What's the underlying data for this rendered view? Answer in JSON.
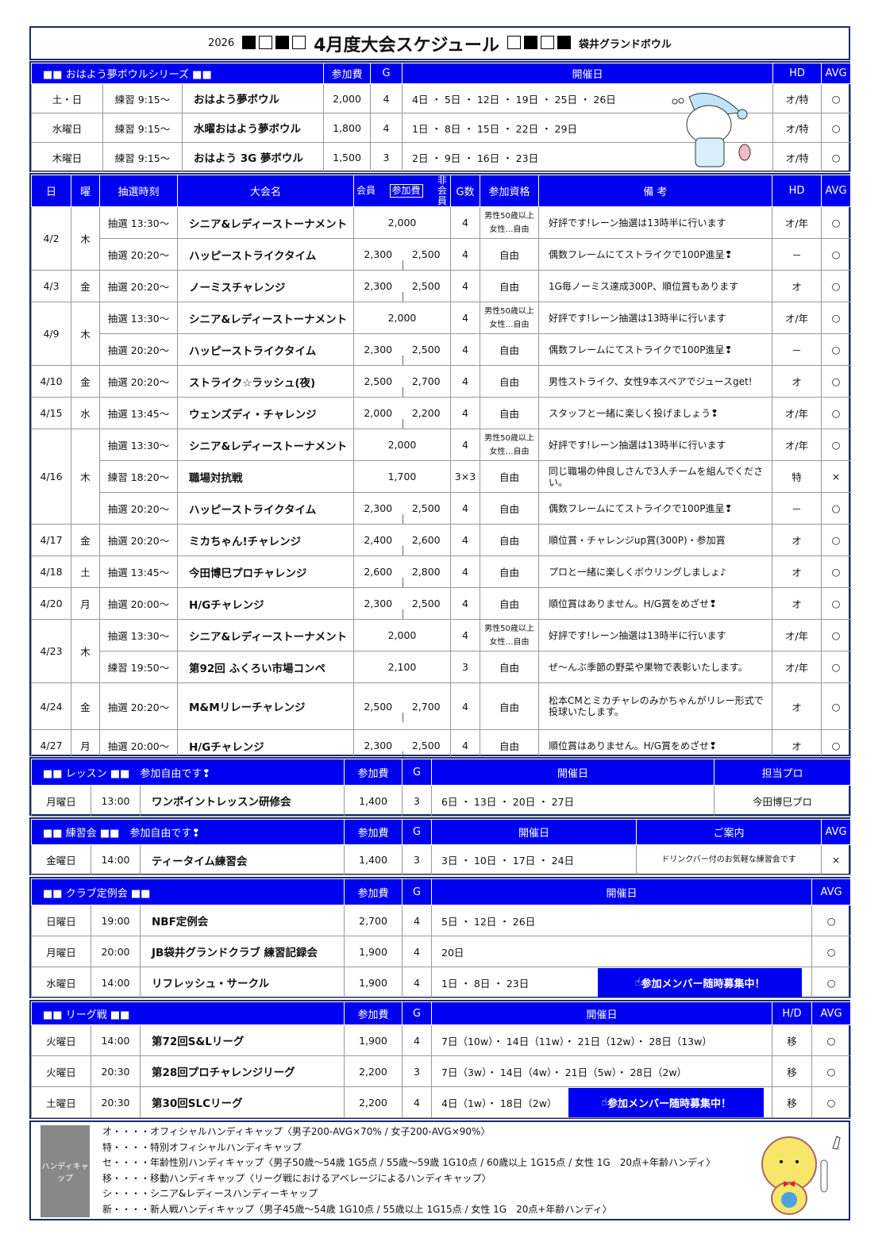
{
  "title": {
    "year": "2026",
    "main": "4月度大会スケジュール",
    "venue": "袋井グランドボウル"
  },
  "morning": {
    "headers": [
      "■■ おはよう夢ボウルシリーズ ■■",
      "参加費",
      "G",
      "開催日",
      "HD",
      "AVG"
    ],
    "rows": [
      [
        "土・日",
        "練習 9:15～",
        "おはよう夢ボウル",
        "2,000",
        "4",
        "4日 ・ 5日 ・ 12日 ・ 19日 ・ 25日 ・ 26日",
        "オ/特",
        "○"
      ],
      [
        "水曜日",
        "練習 9:15～",
        "水曜おはよう夢ボウル",
        "1,800",
        "4",
        "1日 ・ 8日 ・ 15日 ・ 22日 ・ 29日",
        "オ/特",
        "○"
      ],
      [
        "木曜日",
        "練習 9:15～",
        "おはよう 3G 夢ボウル",
        "1,500",
        "3",
        "2日 ・ 9日 ・ 16日 ・ 23日",
        "オ/特",
        "○"
      ]
    ]
  },
  "main": {
    "headers": {
      "day": "日",
      "dow": "曜",
      "time": "抽選時刻",
      "name": "大会名",
      "member": "会員",
      "fee": "参加費",
      "nonmember": "非会員",
      "games": "G数",
      "elig": "参加資格",
      "note": "備 考",
      "hd": "HD",
      "avg": "AVG"
    },
    "days": [
      {
        "date": "4/2",
        "dow": "木",
        "events": [
          {
            "time": "抽選 13:30～",
            "name": "シニア&レディーストーナメント",
            "fee": "2,000",
            "g": "4",
            "elig": "男性50歳以上 女性…自由",
            "note": "好評です!レーン抽選は13時半に行います",
            "hd": "オ/年",
            "avg": "○"
          },
          {
            "time": "抽選 20:20～",
            "name": "ハッピーストライクタイム",
            "member": "2,300",
            "non": "2,500",
            "g": "4",
            "elig": "自由",
            "note": "偶数フレームにてストライクで100P進呈❢",
            "hd": "－",
            "avg": "○"
          }
        ]
      },
      {
        "date": "4/3",
        "dow": "金",
        "events": [
          {
            "time": "抽選 20:20～",
            "name": "ノーミスチャレンジ",
            "member": "2,300",
            "non": "2,500",
            "g": "4",
            "elig": "自由",
            "note": "1G毎ノーミス達成300P、順位賞もあります",
            "hd": "オ",
            "avg": "○"
          }
        ]
      },
      {
        "date": "4/9",
        "dow": "木",
        "events": [
          {
            "time": "抽選 13:30～",
            "name": "シニア&レディーストーナメント",
            "fee": "2,000",
            "g": "4",
            "elig": "男性50歳以上 女性…自由",
            "note": "好評です!レーン抽選は13時半に行います",
            "hd": "オ/年",
            "avg": "○"
          },
          {
            "time": "抽選 20:20～",
            "name": "ハッピーストライクタイム",
            "member": "2,300",
            "non": "2,500",
            "g": "4",
            "elig": "自由",
            "note": "偶数フレームにてストライクで100P進呈❢",
            "hd": "－",
            "avg": "○"
          }
        ]
      },
      {
        "date": "4/10",
        "dow": "金",
        "events": [
          {
            "time": "抽選 20:20～",
            "name": "ストライク☆ラッシュ(夜)",
            "member": "2,500",
            "non": "2,700",
            "g": "4",
            "elig": "自由",
            "note": "男性ストライク、女性9本スペアでジュースget!",
            "hd": "オ",
            "avg": "○"
          }
        ]
      },
      {
        "date": "4/15",
        "dow": "水",
        "events": [
          {
            "time": "抽選 13:45～",
            "name": "ウェンズディ・チャレンジ",
            "member": "2,000",
            "non": "2,200",
            "g": "4",
            "elig": "自由",
            "note": "スタッフと一緒に楽しく投げましょう❢",
            "hd": "オ/年",
            "avg": "○"
          }
        ]
      },
      {
        "date": "4/16",
        "dow": "木",
        "events": [
          {
            "time": "抽選 13:30～",
            "name": "シニア&レディーストーナメント",
            "fee": "2,000",
            "g": "4",
            "elig": "男性50歳以上 女性…自由",
            "note": "好評です!レーン抽選は13時半に行います",
            "hd": "オ/年",
            "avg": "○"
          },
          {
            "time": "練習 18:20～",
            "name": "職場対抗戦",
            "fee": "1,700",
            "g": "3×3",
            "elig": "自由",
            "note": "同じ職場の仲良しさんで3人チームを組んでください。",
            "hd": "特",
            "avg": "×"
          },
          {
            "time": "抽選 20:20～",
            "name": "ハッピーストライクタイム",
            "member": "2,300",
            "non": "2,500",
            "g": "4",
            "elig": "自由",
            "note": "偶数フレームにてストライクで100P進呈❢",
            "hd": "－",
            "avg": "○"
          }
        ]
      },
      {
        "date": "4/17",
        "dow": "金",
        "events": [
          {
            "time": "抽選 20:20～",
            "name": "ミカちゃん!チャレンジ",
            "member": "2,400",
            "non": "2,600",
            "g": "4",
            "elig": "自由",
            "note": "順位賞・チャレンジup賞(300P)・参加賞",
            "hd": "オ",
            "avg": "○"
          }
        ]
      },
      {
        "date": "4/18",
        "dow": "土",
        "events": [
          {
            "time": "抽選 13:45～",
            "name": "今田博巳プロチャレンジ",
            "member": "2,600",
            "non": "2,800",
            "g": "4",
            "elig": "自由",
            "note": "プロと一緒に楽しくボウリングしましょ♪",
            "hd": "オ",
            "avg": "○"
          }
        ]
      },
      {
        "date": "4/20",
        "dow": "月",
        "events": [
          {
            "time": "抽選 20:00～",
            "name": "H/Gチャレンジ",
            "member": "2,300",
            "non": "2,500",
            "g": "4",
            "elig": "自由",
            "note": "順位賞はありません。H/G賞をめざせ❢",
            "hd": "オ",
            "avg": "○"
          }
        ]
      },
      {
        "date": "4/23",
        "dow": "木",
        "events": [
          {
            "time": "抽選 13:30～",
            "name": "シニア&レディーストーナメント",
            "fee": "2,000",
            "g": "4",
            "elig": "男性50歳以上 女性…自由",
            "note": "好評です!レーン抽選は13時半に行います",
            "hd": "オ/年",
            "avg": "○"
          },
          {
            "time": "練習 19:50～",
            "name": "第92回 ふくろい市場コンペ",
            "fee": "2,100",
            "g": "3",
            "elig": "自由",
            "note": "ぜ～んぶ季節の野菜や果物で表彰いたします。",
            "hd": "オ/年",
            "avg": "○"
          }
        ]
      },
      {
        "date": "4/24",
        "dow": "金",
        "tall": true,
        "events": [
          {
            "time": "抽選 20:20～",
            "name": "M&Mリレーチャレンジ",
            "member": "2,500",
            "non": "2,700",
            "g": "4",
            "elig": "自由",
            "note": "松本CMとミカチャレのみかちゃんがリレー形式で投球いたします。",
            "hd": "オ",
            "avg": "○"
          }
        ]
      },
      {
        "date": "4/27",
        "dow": "月",
        "events": [
          {
            "time": "抽選 20:00～",
            "name": "H/Gチャレンジ",
            "member": "2,300",
            "non": "2,500",
            "g": "4",
            "elig": "自由",
            "note": "順位賞はありません。H/G賞をめざせ❢",
            "hd": "オ",
            "avg": "○"
          }
        ]
      }
    ]
  },
  "lesson": {
    "headers": [
      "■■ レッスン ■■　参加自由です❢",
      "参加費",
      "G",
      "開催日",
      "担当プロ"
    ],
    "rows": [
      [
        "月曜日",
        "13:00",
        "ワンポイントレッスン研修会",
        "1,400",
        "3",
        "6日 ・ 13日 ・ 20日 ・ 27日",
        "今田博巳プロ"
      ]
    ]
  },
  "practice": {
    "headers": [
      "■■ 練習会 ■■　参加自由です❢",
      "参加費",
      "G",
      "開催日",
      "ご案内",
      "AVG"
    ],
    "rows": [
      [
        "金曜日",
        "14:00",
        "ティータイム練習会",
        "1,400",
        "3",
        "3日 ・ 10日 ・ 17日 ・ 24日",
        "ドリンクバー付のお気軽な練習会です",
        "×"
      ]
    ]
  },
  "club": {
    "headers": [
      "■■ クラブ定例会 ■■",
      "参加費",
      "G",
      "開催日",
      "AVG"
    ],
    "rows": [
      [
        "日曜日",
        "19:00",
        "NBF定例会",
        "2,700",
        "4",
        "5日 ・ 12日 ・ 26日",
        "○"
      ],
      [
        "月曜日",
        "20:00",
        "JB袋井グランドクラブ 練習記録会",
        "1,900",
        "4",
        "20日",
        "○"
      ],
      [
        "水曜日",
        "14:00",
        "リフレッシュ・サークル",
        "1,900",
        "4",
        "1日 ・ 8日 ・ 23日",
        "○"
      ]
    ],
    "banner": "参加メンバー随時募集中！"
  },
  "league": {
    "headers": [
      "■■ リーグ戦 ■■",
      "参加費",
      "G",
      "開催日",
      "H/D",
      "AVG"
    ],
    "rows": [
      [
        "火曜日",
        "14:00",
        "第72回S&Lリーグ",
        "1,900",
        "4",
        "7日（10w）・ 14日（11w）・ 21日（12w）・ 28日（13w）",
        "移",
        "○"
      ],
      [
        "火曜日",
        "20:30",
        "第28回プロチャレンジリーグ",
        "2,200",
        "3",
        "7日（3w）・ 14日（4w）・ 21日（5w）・ 28日（2w）",
        "移",
        "○"
      ],
      [
        "土曜日",
        "20:30",
        "第30回SLCリーグ",
        "2,200",
        "4",
        "4日（1w）・ 18日（2w）",
        "移",
        "○"
      ]
    ],
    "banner": "参加メンバー随時募集中！"
  },
  "legend": {
    "tag": "ハンディキャップ",
    "lines": [
      "オ・・・・オフィシャルハンディキャップ〈男子200-AVG×70% / 女子200-AVG×90%〉",
      "特・・・・特別オフィシャルハンディキャップ",
      "セ・・・・年齢性別ハンディキャップ〈男子50歳～54歳 1G5点 / 55歳～59歳 1G10点 / 60歳以上 1G15点 / 女性 1G　20点+年齢ハンディ〉",
      "移・・・・移動ハンディキャップ〈リーグ戦におけるアベレージによるハンディキャップ〉",
      "シ・・・・シニア&レディースハンディーキャップ",
      "新・・・・新人戦ハンディキャップ〈男子45歳～54歳 1G10点 / 55歳以上 1G15点 / 女性 1G　20点+年齢ハンディ〉"
    ]
  },
  "colors": {
    "header_blue": "#0000f0",
    "border": "#1c2a66"
  },
  "icons": {
    "banner": "pointing-hand-icon",
    "mascot_top": "sleepy-cat-mascot",
    "mascot_bottom": "lion-mascot"
  }
}
